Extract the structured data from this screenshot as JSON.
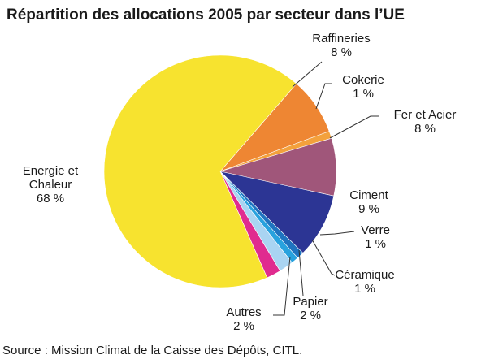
{
  "chart_data": {
    "type": "pie",
    "title": "Répartition des allocations 2005 par secteur dans l’UE",
    "source": "Source : Mission Climat de la Caisse des Dépôts, CITL.",
    "slices": [
      {
        "name": "Energie et Chaleur",
        "name_lines": [
          "Energie et",
          "Chaleur"
        ],
        "value_label": "68 %",
        "value": 68,
        "color": "#f7e32f"
      },
      {
        "name": "Raffineries",
        "name_lines": [
          "Raffineries"
        ],
        "value_label": "8 %",
        "value": 8,
        "color": "#ee8633"
      },
      {
        "name": "Cokerie",
        "name_lines": [
          "Cokerie"
        ],
        "value_label": "1 %",
        "value": 1,
        "color": "#f3a13c"
      },
      {
        "name": "Fer et Acier",
        "name_lines": [
          "Fer et Acier"
        ],
        "value_label": "8 %",
        "value": 8,
        "color": "#a0567a"
      },
      {
        "name": "Ciment",
        "name_lines": [
          "Ciment"
        ],
        "value_label": "9 %",
        "value": 9,
        "color": "#2c3594"
      },
      {
        "name": "Verre",
        "name_lines": [
          "Verre"
        ],
        "value_label": "1 %",
        "value": 1,
        "color": "#1f74c0"
      },
      {
        "name": "Céramique",
        "name_lines": [
          "Céramique"
        ],
        "value_label": "1 %",
        "value": 1,
        "color": "#28a2de"
      },
      {
        "name": "Papier",
        "name_lines": [
          "Papier"
        ],
        "value_label": "2 %",
        "value": 2,
        "color": "#a9d4f2"
      },
      {
        "name": "Autres",
        "name_lines": [
          "Autres"
        ],
        "value_label": "2 %",
        "value": 2,
        "color": "#e02b8f"
      }
    ]
  }
}
